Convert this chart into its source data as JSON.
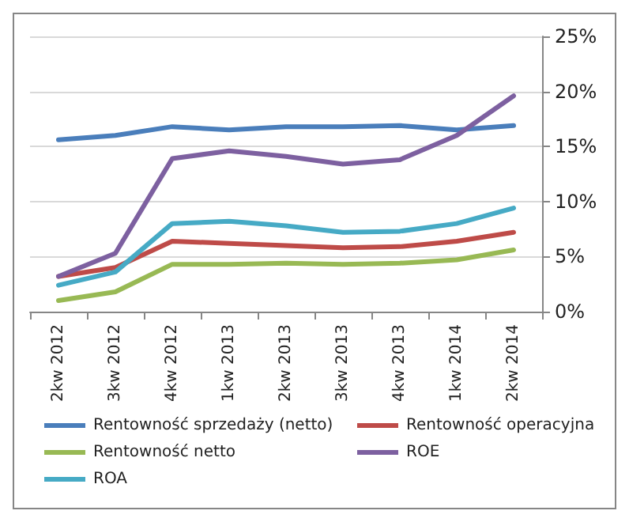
{
  "chart_data": {
    "type": "line",
    "categories": [
      "2kw 2012",
      "3kw 2012",
      "4kw 2012",
      "1kw 2013",
      "2kw 2013",
      "3kw 2013",
      "4kw 2013",
      "1kw 2014",
      "2kw 2014"
    ],
    "series": [
      {
        "name": "Rentowność sprzedaży (netto)",
        "color": "#4a7ebb",
        "values": [
          15.6,
          16.0,
          16.8,
          16.5,
          16.8,
          16.8,
          16.9,
          16.5,
          16.9
        ]
      },
      {
        "name": "Rentowność operacyjna",
        "color": "#be4b48",
        "values": [
          3.2,
          4.0,
          6.4,
          6.2,
          6.0,
          5.8,
          5.9,
          6.4,
          7.2
        ]
      },
      {
        "name": "Rentowność netto",
        "color": "#98b954",
        "values": [
          1.0,
          1.8,
          4.3,
          4.3,
          4.4,
          4.3,
          4.4,
          4.7,
          5.6
        ]
      },
      {
        "name": "ROE",
        "color": "#7d60a0",
        "values": [
          3.2,
          5.3,
          13.9,
          14.6,
          14.1,
          13.4,
          13.8,
          16.0,
          19.6
        ]
      },
      {
        "name": "ROA",
        "color": "#46aac5",
        "values": [
          2.4,
          3.6,
          8.0,
          8.2,
          7.8,
          7.2,
          7.3,
          8.0,
          9.4
        ]
      }
    ],
    "ylim": [
      0,
      25
    ],
    "yticks": [
      {
        "value": 0,
        "label": "0%"
      },
      {
        "value": 5,
        "label": "5%"
      },
      {
        "value": 10,
        "label": "10%"
      },
      {
        "value": 15,
        "label": "15%"
      },
      {
        "value": 20,
        "label": "20%"
      },
      {
        "value": 25,
        "label": "25%"
      }
    ],
    "grid": "y",
    "legend": "bottom",
    "marker": "none",
    "line_style": "solid"
  }
}
